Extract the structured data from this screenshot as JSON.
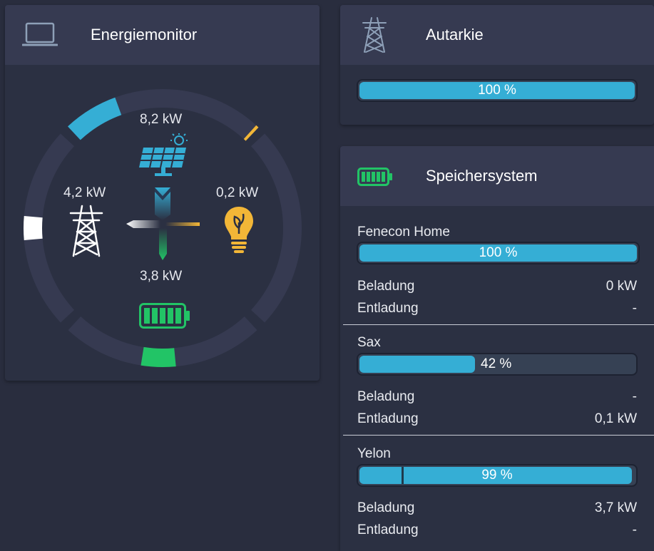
{
  "monitor": {
    "title": "Energiemonitor",
    "icon": "laptop-icon",
    "production_value": "8,2 kW",
    "grid_value": "4,2 kW",
    "consumption_value": "0,2 kW",
    "storage_value": "3,8 kW",
    "colors": {
      "production": "#35aed5",
      "grid": "#ffffff",
      "consumption": "#f2b637",
      "storage": "#22c466",
      "ring": "#363a51"
    }
  },
  "autarkie": {
    "title": "Autarkie",
    "icon": "power-tower-icon",
    "percent_value": 100,
    "percent_label": "100 %"
  },
  "storage": {
    "title": "Speichersystem",
    "icon": "battery-icon",
    "charge_label": "Beladung",
    "discharge_label": "Entladung",
    "devices": [
      {
        "name": "Fenecon Home",
        "percent_value": 100,
        "percent_label": "100 %",
        "charge": "0 kW",
        "discharge": "-"
      },
      {
        "name": "Sax",
        "percent_value": 42,
        "percent_label": "42 %",
        "charge": "-",
        "discharge": "0,1 kW"
      },
      {
        "name": "Yelon",
        "percent_value": 99,
        "percent_label": "99 %",
        "charge": "3,7 kW",
        "discharge": "-"
      }
    ]
  }
}
